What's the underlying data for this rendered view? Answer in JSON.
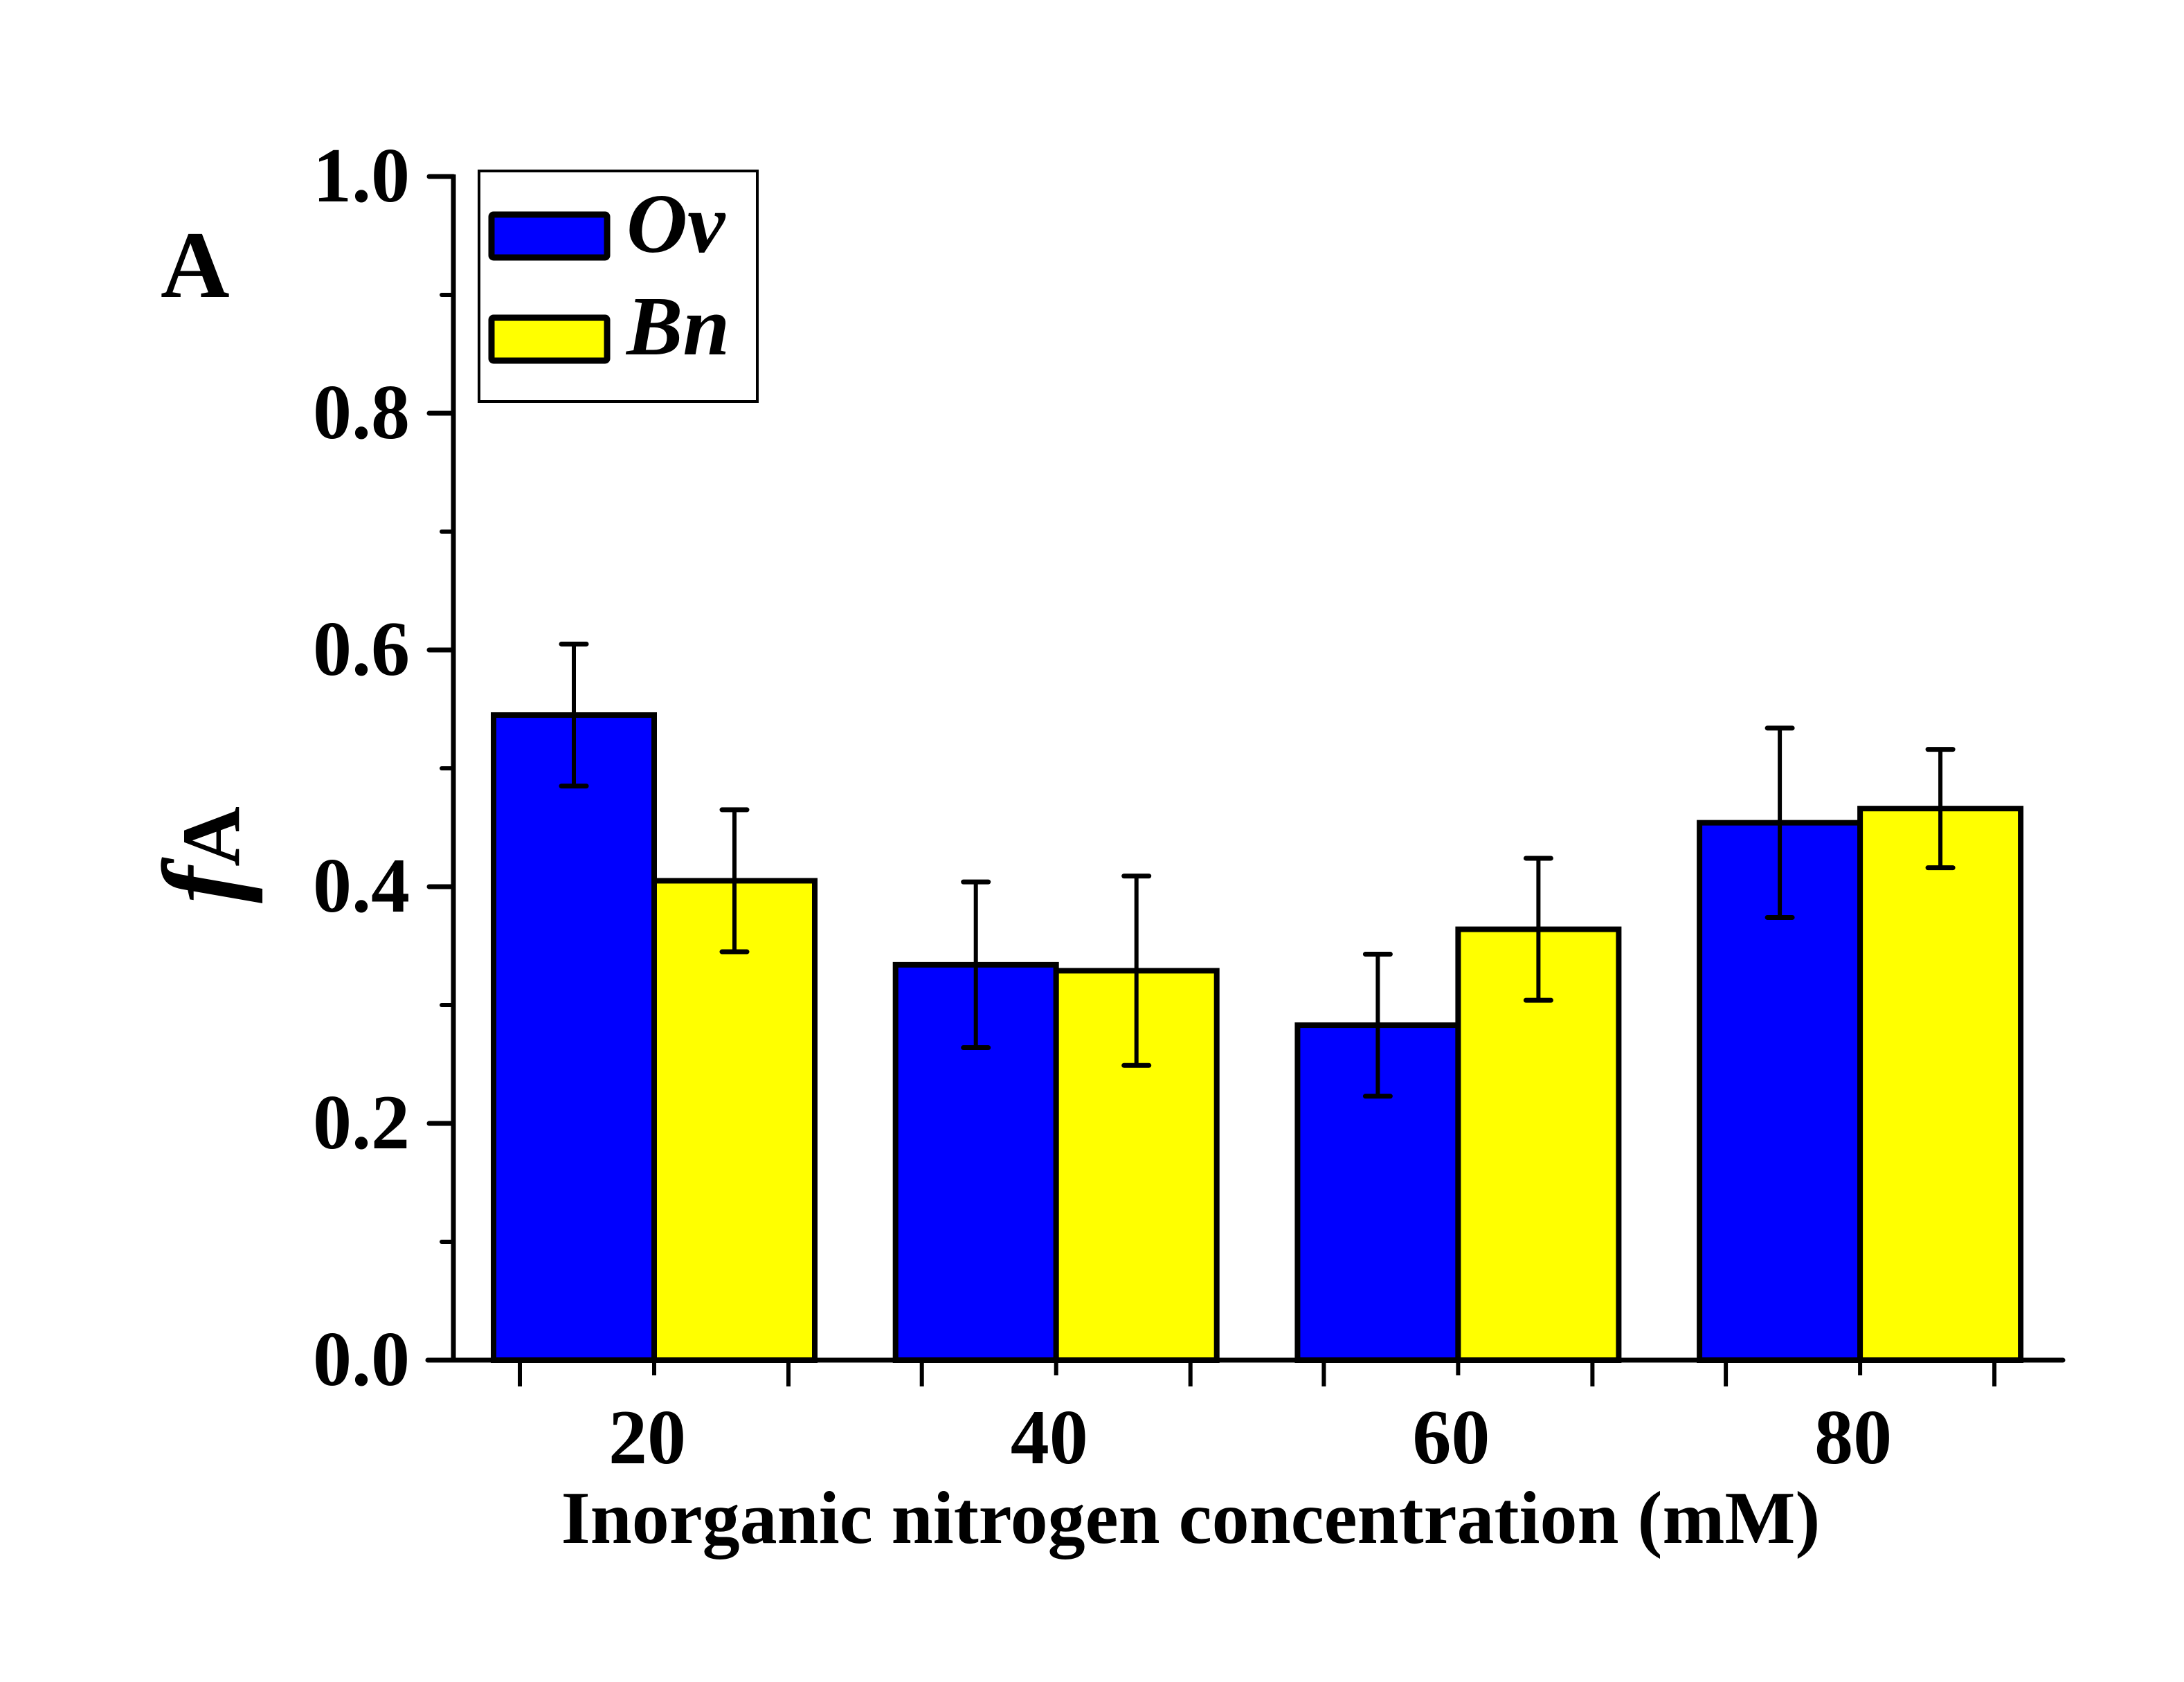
{
  "chart_data": {
    "type": "bar",
    "panel_label": "A",
    "title": "",
    "xlabel": "Inorganic nitrogen concentration (mM)",
    "ylabel": "f",
    "ylabel_subscript": "A",
    "categories": [
      "20",
      "40",
      "60",
      "80"
    ],
    "ylim": [
      0.0,
      1.0
    ],
    "yticks": [
      "0.0",
      "0.2",
      "0.4",
      "0.6",
      "0.8",
      "1.0"
    ],
    "yticks_values": [
      0.0,
      0.2,
      0.4,
      0.6,
      0.8,
      1.0
    ],
    "yminor_values": [
      0.1,
      0.3,
      0.5,
      0.7,
      0.9
    ],
    "grid": false,
    "legend_position": "top-left",
    "series": [
      {
        "name": "Ov",
        "color": "#0000FF",
        "values": [
          0.545,
          0.334,
          0.283,
          0.454
        ],
        "errors": [
          0.06,
          0.07,
          0.06,
          0.08
        ]
      },
      {
        "name": "Bn",
        "color": "#FFFF00",
        "values": [
          0.405,
          0.329,
          0.364,
          0.466
        ],
        "errors": [
          0.06,
          0.08,
          0.06,
          0.05
        ]
      }
    ]
  }
}
